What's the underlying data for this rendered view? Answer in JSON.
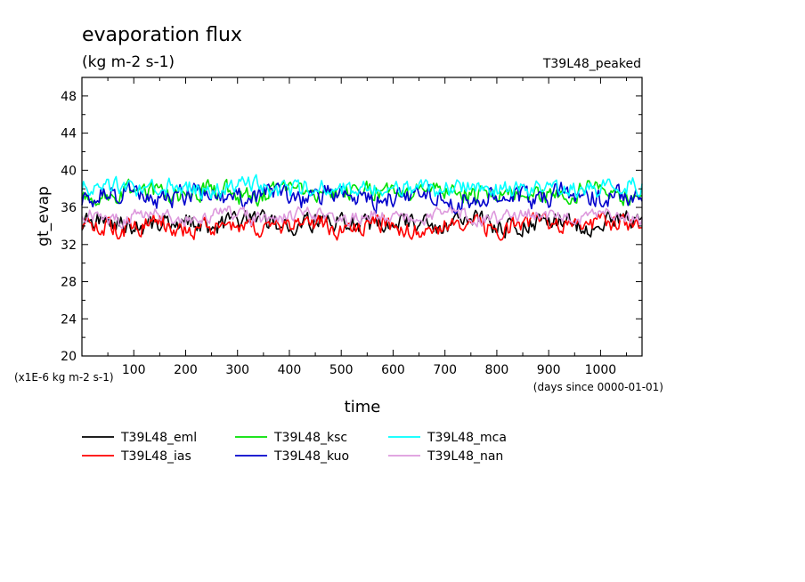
{
  "chart_data": {
    "type": "line",
    "title": "evaporation flux",
    "subtitle": "(kg m-2 s-1)",
    "annotation": "T39L48_peaked",
    "xlabel": "time",
    "ylabel": "gt_evap",
    "x_unit_label": "(days since 0000-01-01)",
    "y_unit_label": "(x1E-6 kg m-2 s-1)",
    "xlim": [
      0,
      1080
    ],
    "ylim": [
      20,
      50
    ],
    "x_ticks": [
      100,
      200,
      300,
      400,
      500,
      600,
      700,
      800,
      900,
      1000
    ],
    "y_ticks": [
      20,
      24,
      28,
      32,
      36,
      40,
      44,
      48
    ],
    "legend_position": "bottom",
    "series": [
      {
        "name": "T39L48_eml",
        "color": "#000000",
        "mean": 34.3,
        "amplitude": 1.6
      },
      {
        "name": "T39L48_ias",
        "color": "#ff0000",
        "mean": 34.0,
        "amplitude": 1.6
      },
      {
        "name": "T39L48_ksc",
        "color": "#00e000",
        "mean": 37.6,
        "amplitude": 1.6
      },
      {
        "name": "T39L48_kuo",
        "color": "#0000cc",
        "mean": 37.2,
        "amplitude": 1.8
      },
      {
        "name": "T39L48_mca",
        "color": "#00ffff",
        "mean": 38.1,
        "amplitude": 1.5
      },
      {
        "name": "T39L48_nan",
        "color": "#dd99dd",
        "mean": 35.0,
        "amplitude": 1.2
      }
    ]
  }
}
